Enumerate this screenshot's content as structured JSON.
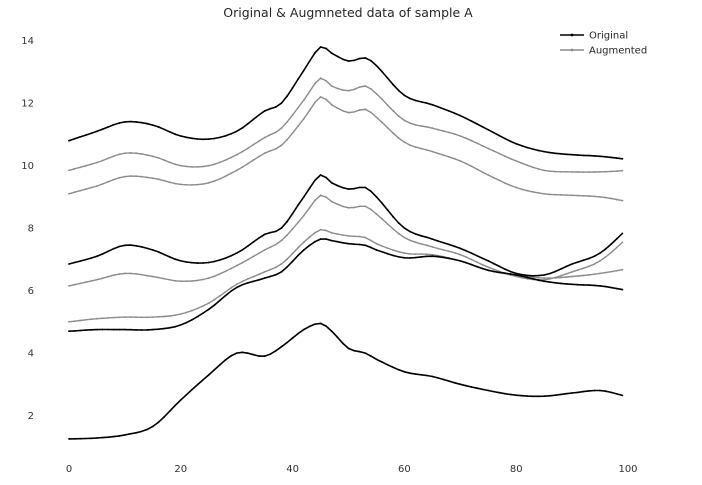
{
  "chart_data": {
    "type": "line",
    "title": "Original & Augmneted data of sample A",
    "xlabel": "",
    "ylabel": "",
    "xlim": [
      0,
      100
    ],
    "ylim": [
      0.8,
      14.6
    ],
    "xticks": [
      0,
      20,
      40,
      60,
      80,
      100
    ],
    "yticks": [
      2,
      4,
      6,
      8,
      10,
      12,
      14
    ],
    "grid": false,
    "legend": {
      "placement": "top-right",
      "entries": [
        {
          "label": "Original",
          "color": "#000000"
        },
        {
          "label": "Augmented",
          "color": "#8c8c8c"
        }
      ]
    },
    "anchor_x": [
      0,
      5,
      10,
      15,
      20,
      25,
      30,
      35,
      38,
      42,
      45,
      47,
      50,
      53,
      55,
      60,
      65,
      70,
      75,
      80,
      85,
      90,
      95,
      100
    ],
    "series": [
      {
        "group": "Original",
        "color": "#000000",
        "y": [
          1.25,
          1.28,
          1.38,
          1.65,
          2.5,
          3.3,
          4.0,
          3.9,
          4.2,
          4.75,
          4.95,
          4.7,
          4.15,
          4.0,
          3.8,
          3.4,
          3.25,
          3.0,
          2.8,
          2.65,
          2.62,
          2.72,
          2.8,
          2.6
        ]
      },
      {
        "group": "Original",
        "color": "#000000",
        "y": [
          4.7,
          4.75,
          4.75,
          4.75,
          4.9,
          5.4,
          6.1,
          6.4,
          6.6,
          7.3,
          7.65,
          7.6,
          7.5,
          7.45,
          7.3,
          7.05,
          7.1,
          6.95,
          6.65,
          6.5,
          6.3,
          6.2,
          6.15,
          6.0
        ]
      },
      {
        "group": "Original",
        "color": "#000000",
        "y": [
          6.85,
          7.1,
          7.45,
          7.3,
          6.95,
          6.9,
          7.2,
          7.8,
          8.0,
          9.0,
          9.7,
          9.45,
          9.25,
          9.3,
          9.0,
          8.0,
          7.65,
          7.35,
          6.95,
          6.55,
          6.5,
          6.85,
          7.2,
          8.0
        ]
      },
      {
        "group": "Original",
        "color": "#000000",
        "y": [
          10.8,
          11.1,
          11.4,
          11.3,
          10.95,
          10.85,
          11.1,
          11.75,
          12.0,
          13.05,
          13.8,
          13.6,
          13.35,
          13.45,
          13.2,
          12.25,
          11.95,
          11.6,
          11.15,
          10.7,
          10.45,
          10.35,
          10.3,
          10.2
        ]
      },
      {
        "group": "Augmented",
        "color": "#8c8c8c",
        "y": [
          5.0,
          5.1,
          5.15,
          5.15,
          5.25,
          5.6,
          6.2,
          6.6,
          6.85,
          7.55,
          7.95,
          7.85,
          7.75,
          7.7,
          7.5,
          7.2,
          7.15,
          6.95,
          6.65,
          6.5,
          6.4,
          6.45,
          6.55,
          6.7
        ]
      },
      {
        "group": "Augmented",
        "color": "#8c8c8c",
        "y": [
          6.15,
          6.35,
          6.55,
          6.45,
          6.3,
          6.4,
          6.8,
          7.3,
          7.6,
          8.4,
          9.05,
          8.85,
          8.65,
          8.7,
          8.45,
          7.7,
          7.4,
          7.15,
          6.75,
          6.45,
          6.35,
          6.6,
          6.95,
          7.7
        ]
      },
      {
        "group": "Augmented",
        "color": "#8c8c8c",
        "y": [
          9.1,
          9.35,
          9.65,
          9.6,
          9.4,
          9.45,
          9.85,
          10.4,
          10.65,
          11.5,
          12.2,
          11.95,
          11.7,
          11.8,
          11.55,
          10.75,
          10.45,
          10.15,
          9.7,
          9.3,
          9.1,
          9.05,
          9.0,
          8.85
        ]
      },
      {
        "group": "Augmented",
        "color": "#8c8c8c",
        "y": [
          9.85,
          10.1,
          10.4,
          10.3,
          10.0,
          10.0,
          10.35,
          10.9,
          11.2,
          12.1,
          12.8,
          12.55,
          12.4,
          12.55,
          12.3,
          11.45,
          11.2,
          10.95,
          10.55,
          10.15,
          9.85,
          9.8,
          9.8,
          9.85
        ]
      }
    ]
  }
}
